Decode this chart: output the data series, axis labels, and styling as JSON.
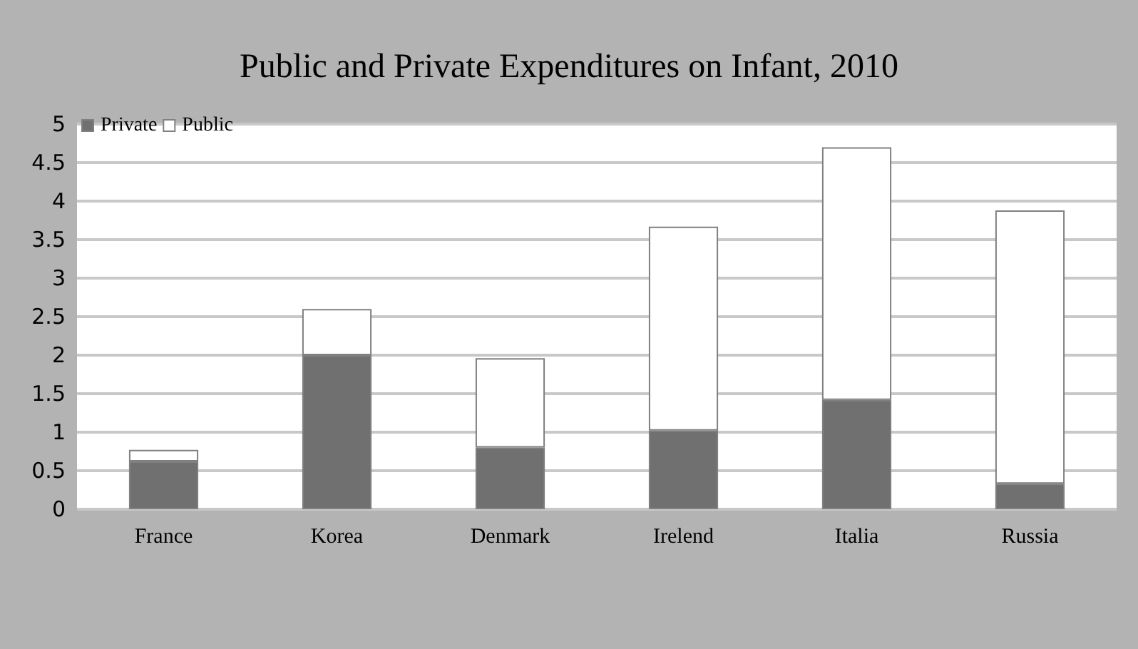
{
  "chart_data": {
    "type": "bar",
    "title": "Public and Private Expenditures on Infant, 2010",
    "categories": [
      "France",
      "Korea",
      "Denmark",
      "Irelend",
      "Italia",
      "Russia"
    ],
    "series": [
      {
        "name": "Private",
        "color": "#707070",
        "values": [
          0.62,
          2.0,
          0.8,
          1.02,
          1.42,
          0.33
        ]
      },
      {
        "name": "Public",
        "color": "#ffffff",
        "values": [
          0.15,
          0.6,
          1.16,
          2.65,
          3.28,
          3.55
        ]
      }
    ],
    "stacked": true,
    "ylim": [
      0,
      5
    ],
    "yticks": [
      0,
      0.5,
      1,
      1.5,
      2,
      2.5,
      3,
      3.5,
      4,
      4.5,
      5
    ],
    "grid": "y",
    "legend": "top left"
  }
}
